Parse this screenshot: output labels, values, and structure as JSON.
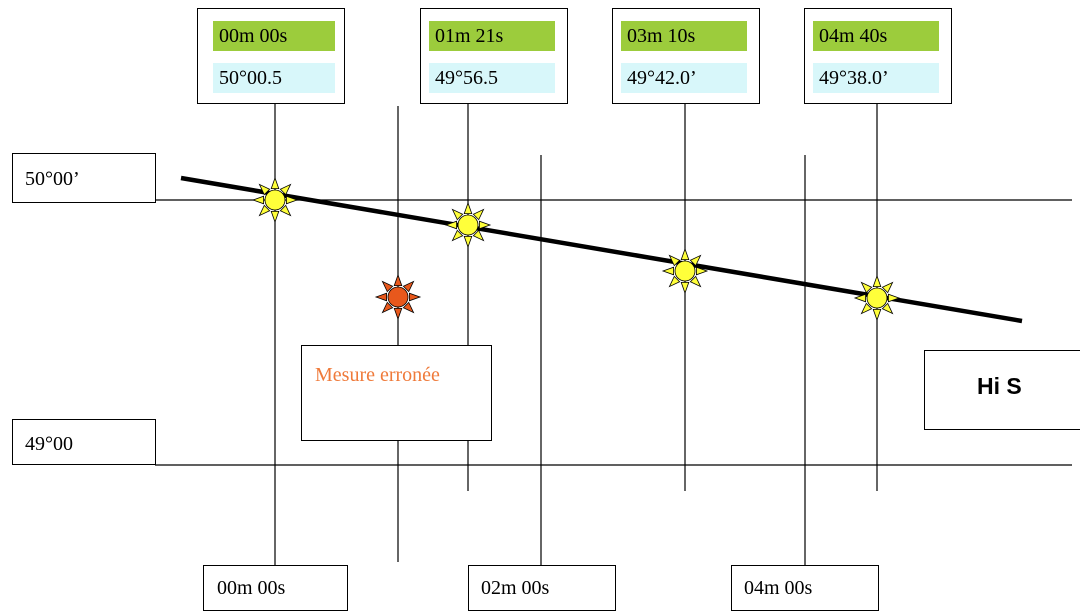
{
  "top_boxes": [
    {
      "time": "00m 00s",
      "altitude": "50°00.5"
    },
    {
      "time": "01m 21s",
      "altitude": "49°56.5"
    },
    {
      "time": "03m 10s",
      "altitude": "49°42.0’"
    },
    {
      "time": "04m 40s",
      "altitude": "49°38.0’"
    }
  ],
  "altitude_labels": {
    "upper": "50°00’",
    "lower": "49°00"
  },
  "bottom_labels": [
    "00m 00s",
    "02m 00s",
    "04m 00s"
  ],
  "error_note": "Mesure erronée",
  "result_label": "Hi S",
  "colors": {
    "time_cell": "#9ccc3c",
    "altitude_cell": "#d8f7fa",
    "sun_ok": "#ffff3a",
    "sun_error": "#e8581c",
    "error_text": "#ef7a3a"
  },
  "observations": [
    {
      "time": "00m 00s",
      "valid": true
    },
    {
      "time": "01m 21s",
      "valid": true
    },
    {
      "time": "03m 10s",
      "valid": true
    },
    {
      "time": "04m 40s",
      "valid": true
    },
    {
      "time": "",
      "valid": false
    }
  ]
}
